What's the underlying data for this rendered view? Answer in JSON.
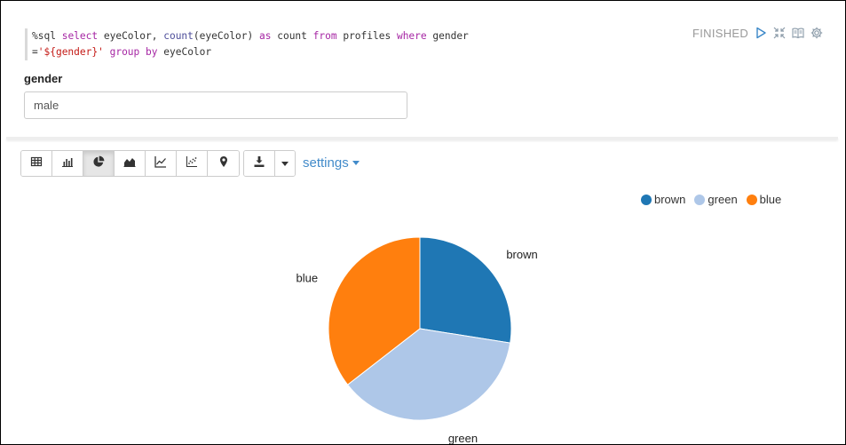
{
  "paragraph": {
    "code": {
      "magic": "%sql",
      "select": "select",
      "col1": " eyeColor, ",
      "count_fn": "count",
      "col2": "(eyeColor) ",
      "as": "as",
      "alias": " count ",
      "from": "from",
      "table": " profiles ",
      "where": "where",
      "col3": " gender",
      "eq": "=",
      "param_str": "'${gender}'",
      "sp": " ",
      "group": "group",
      "sp2": " ",
      "by": "by",
      "groupcol": " eyeColor"
    },
    "status": "FINISHED",
    "icons": {
      "run": "play-icon",
      "hide_editor": "collapse-icon",
      "book": "book-icon",
      "settings": "gear-icon"
    }
  },
  "form": {
    "label": "gender",
    "value": "male"
  },
  "toolbar": {
    "views": [
      {
        "name": "table-icon",
        "active": false
      },
      {
        "name": "bar-chart-icon",
        "active": false
      },
      {
        "name": "pie-chart-icon",
        "active": true
      },
      {
        "name": "area-chart-icon",
        "active": false
      },
      {
        "name": "line-chart-icon",
        "active": false
      },
      {
        "name": "scatter-chart-icon",
        "active": false
      },
      {
        "name": "map-marker-icon",
        "active": false
      }
    ],
    "download_icon": "download-icon",
    "settings_label": "settings"
  },
  "colors": {
    "brown": "#1f77b4",
    "green": "#aec7e8",
    "blue": "#ff7f0e",
    "link": "#428bca"
  },
  "chart_data": {
    "type": "pie",
    "categories": [
      "brown",
      "green",
      "blue"
    ],
    "values": [
      27.5,
      37.0,
      35.5
    ],
    "legend": [
      "brown",
      "green",
      "blue"
    ],
    "legend_position": "top-right",
    "labels_outside": true
  }
}
